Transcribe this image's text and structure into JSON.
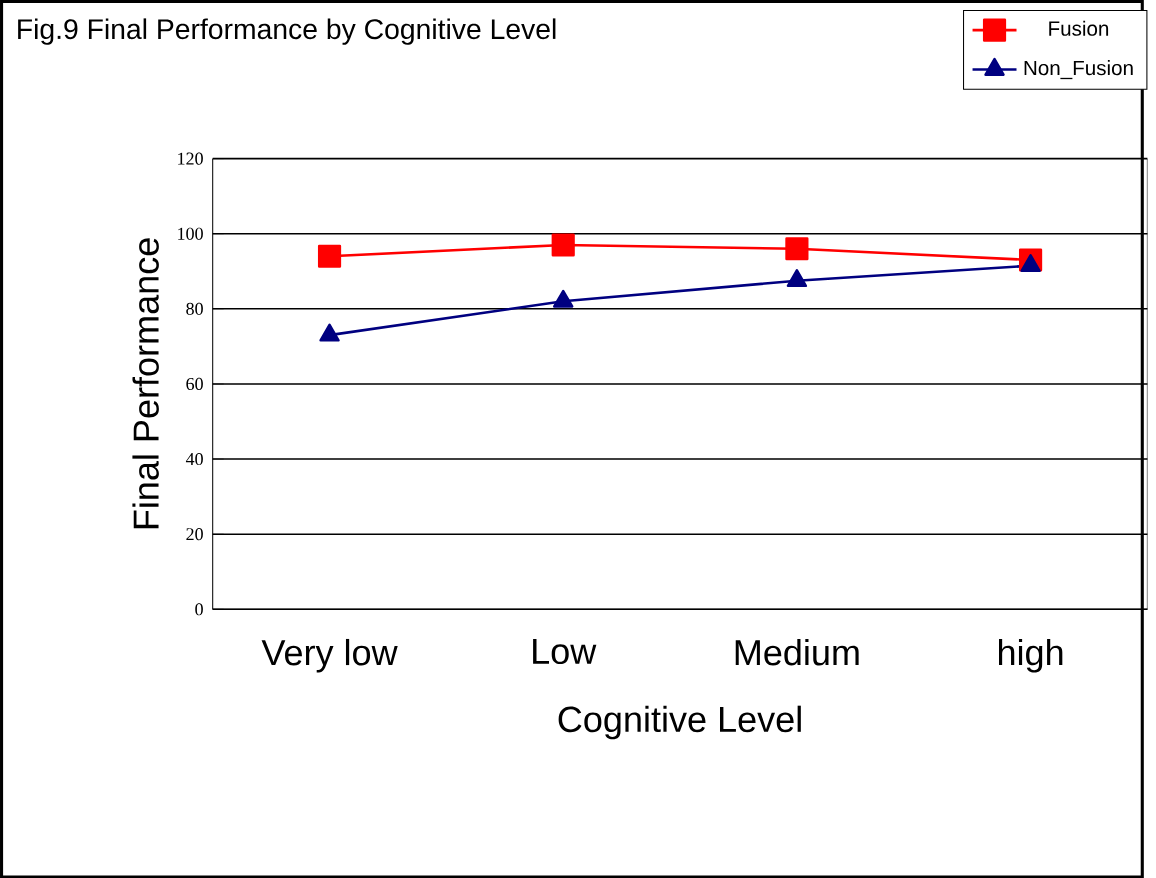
{
  "chart_data": {
    "type": "line",
    "title": "Fig.9 Final Performance by Cognitive Level",
    "xlabel": "Cognitive Level",
    "ylabel": "Final Performance",
    "categories": [
      "Very low",
      "Low",
      "Medium",
      "high"
    ],
    "series": [
      {
        "name": "Fusion",
        "color": "#ff0000",
        "marker": "square",
        "values": [
          94,
          97,
          96,
          93
        ]
      },
      {
        "name": "Non_Fusion",
        "color": "#000080",
        "marker": "triangle",
        "values": [
          73,
          82,
          87.5,
          91.5
        ]
      }
    ],
    "ylim": [
      0,
      120
    ],
    "yticks": [
      0,
      20,
      40,
      60,
      80,
      100,
      120
    ],
    "grid": "y",
    "legend": "top right"
  }
}
